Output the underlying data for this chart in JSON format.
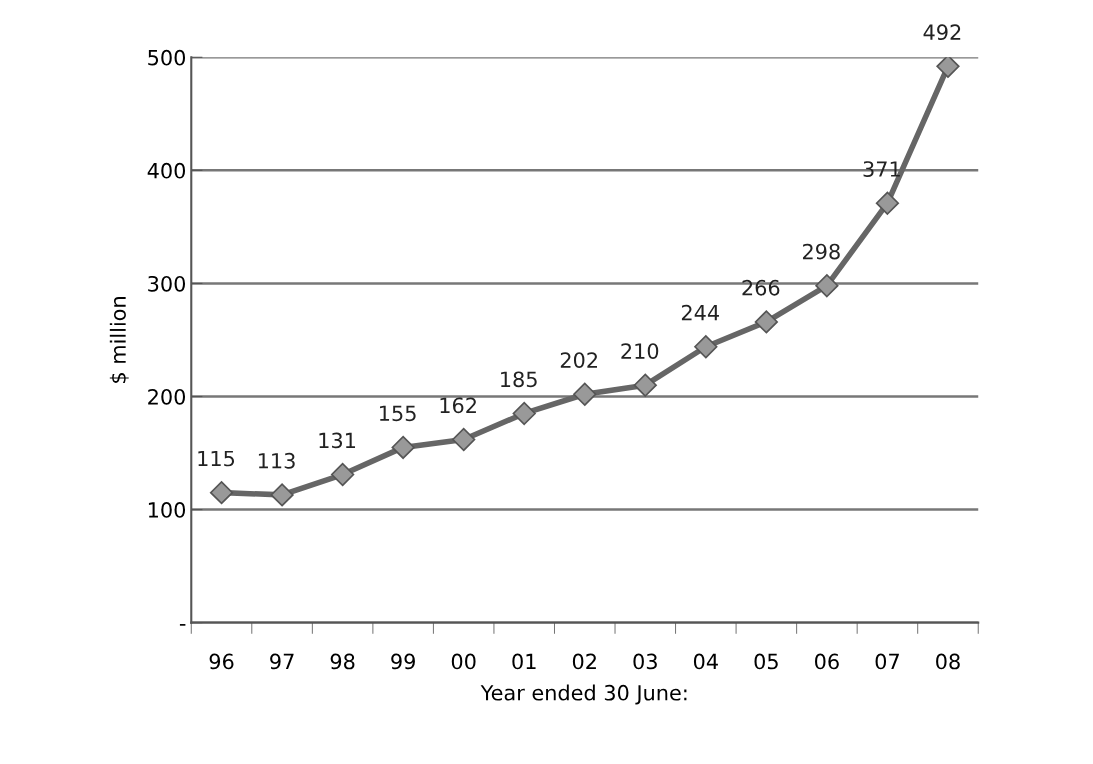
{
  "chart_data": {
    "type": "line",
    "xlabel": "Year ended 30 June:",
    "ylabel": "$ million",
    "categories": [
      "96",
      "97",
      "98",
      "99",
      "00",
      "01",
      "02",
      "03",
      "04",
      "05",
      "06",
      "07",
      "08"
    ],
    "series": [
      {
        "color": "#666666",
        "values": [
          115,
          113,
          131,
          155,
          162,
          185,
          202,
          210,
          244,
          266,
          298,
          371,
          492
        ]
      }
    ],
    "ylim": [
      0,
      500
    ],
    "yticks": [
      {
        "value": 0,
        "label": "-"
      },
      100,
      200,
      300,
      400,
      500
    ],
    "grid": "y",
    "marker": "diamond",
    "line_style": "solid",
    "data_labels": true,
    "legend": false
  }
}
